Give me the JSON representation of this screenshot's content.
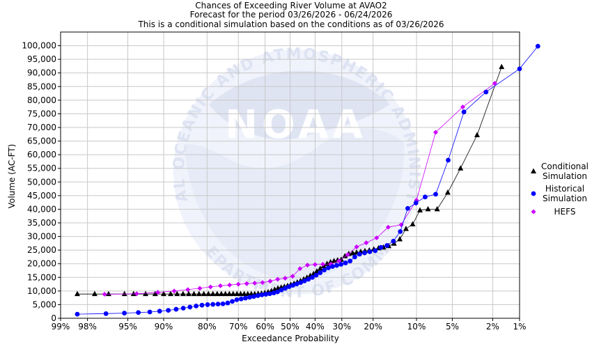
{
  "chart_data": {
    "type": "scatter",
    "title_lines": [
      "Chances of Exceeding River Volume at AVAO2",
      "Forecast for the period 03/26/2026 - 06/24/2026",
      "This is a conditional simulation based on the conditions as of 03/26/2026"
    ],
    "xlabel": "Exceedance Probability",
    "ylabel": "Volume (AC-FT)",
    "x_scale": "normal-probability",
    "x_ticks": [
      {
        "p": 0.99,
        "label": "99%"
      },
      {
        "p": 0.98,
        "label": "98%"
      },
      {
        "p": 0.95,
        "label": "95%"
      },
      {
        "p": 0.9,
        "label": "90%"
      },
      {
        "p": 0.8,
        "label": "80%"
      },
      {
        "p": 0.7,
        "label": "70%"
      },
      {
        "p": 0.6,
        "label": "60%"
      },
      {
        "p": 0.5,
        "label": "50%"
      },
      {
        "p": 0.4,
        "label": "40%"
      },
      {
        "p": 0.3,
        "label": "30%"
      },
      {
        "p": 0.2,
        "label": "20%"
      },
      {
        "p": 0.1,
        "label": "10%"
      },
      {
        "p": 0.05,
        "label": "5%"
      },
      {
        "p": 0.02,
        "label": "2%"
      },
      {
        "p": 0.01,
        "label": "1%"
      }
    ],
    "ylim": [
      0,
      105000
    ],
    "y_ticks": [
      {
        "v": 0,
        "label": "0"
      },
      {
        "v": 5000,
        "label": "5,000"
      },
      {
        "v": 10000,
        "label": "10,000"
      },
      {
        "v": 15000,
        "label": "15,000"
      },
      {
        "v": 20000,
        "label": "20,000"
      },
      {
        "v": 25000,
        "label": "25,000"
      },
      {
        "v": 30000,
        "label": "30,000"
      },
      {
        "v": 35000,
        "label": "35,000"
      },
      {
        "v": 40000,
        "label": "40,000"
      },
      {
        "v": 45000,
        "label": "45,000"
      },
      {
        "v": 50000,
        "label": "50,000"
      },
      {
        "v": 55000,
        "label": "55,000"
      },
      {
        "v": 60000,
        "label": "60,000"
      },
      {
        "v": 65000,
        "label": "65,000"
      },
      {
        "v": 70000,
        "label": "70,000"
      },
      {
        "v": 75000,
        "label": "75,000"
      },
      {
        "v": 80000,
        "label": "80,000"
      },
      {
        "v": 85000,
        "label": "85,000"
      },
      {
        "v": 90000,
        "label": "90,000"
      },
      {
        "v": 95000,
        "label": "95,000"
      },
      {
        "v": 100000,
        "label": "100,000"
      }
    ],
    "grid": true,
    "legend_position": "right",
    "watermark_text": [
      "NATIONAL OCEANIC AND ATMOSPHERIC ADMINISTRATION",
      "NOAA",
      "U.S. DEPARTMENT OF COMMERCE"
    ],
    "series": [
      {
        "name": "Conditional Simulation",
        "legend_lines": [
          "Conditional",
          "Simulation"
        ],
        "color": "#000000",
        "marker": "triangle",
        "points": [
          [
            0.9845,
            8900
          ],
          [
            0.9762,
            8900
          ],
          [
            0.9671,
            8900
          ],
          [
            0.9534,
            8900
          ],
          [
            0.9437,
            8900
          ],
          [
            0.9285,
            8900
          ],
          [
            0.9143,
            8900
          ],
          [
            0.9,
            8900
          ],
          [
            0.887,
            8900
          ],
          [
            0.874,
            8900
          ],
          [
            0.861,
            8900
          ],
          [
            0.848,
            8900
          ],
          [
            0.835,
            8900
          ],
          [
            0.822,
            8900
          ],
          [
            0.809,
            8900
          ],
          [
            0.796,
            8900
          ],
          [
            0.783,
            8900
          ],
          [
            0.77,
            8900
          ],
          [
            0.757,
            8900
          ],
          [
            0.744,
            8900
          ],
          [
            0.731,
            8900
          ],
          [
            0.718,
            8900
          ],
          [
            0.705,
            8900
          ],
          [
            0.692,
            8900
          ],
          [
            0.679,
            8900
          ],
          [
            0.666,
            8900
          ],
          [
            0.653,
            8900
          ],
          [
            0.64,
            8900
          ],
          [
            0.627,
            9000
          ],
          [
            0.614,
            9100
          ],
          [
            0.601,
            9300
          ],
          [
            0.588,
            9600
          ],
          [
            0.575,
            10000
          ],
          [
            0.562,
            10500
          ],
          [
            0.549,
            11000
          ],
          [
            0.536,
            11300
          ],
          [
            0.523,
            11600
          ],
          [
            0.51,
            11900
          ],
          [
            0.497,
            12300
          ],
          [
            0.484,
            12700
          ],
          [
            0.471,
            13200
          ],
          [
            0.458,
            13700
          ],
          [
            0.445,
            14300
          ],
          [
            0.432,
            14900
          ],
          [
            0.419,
            15600
          ],
          [
            0.406,
            16300
          ],
          [
            0.393,
            17200
          ],
          [
            0.38,
            18200
          ],
          [
            0.367,
            19200
          ],
          [
            0.354,
            20000
          ],
          [
            0.341,
            20600
          ],
          [
            0.328,
            21000
          ],
          [
            0.315,
            21300
          ],
          [
            0.302,
            21500
          ],
          [
            0.289,
            22800
          ],
          [
            0.276,
            23600
          ],
          [
            0.263,
            23900
          ],
          [
            0.25,
            24100
          ],
          [
            0.237,
            24400
          ],
          [
            0.224,
            24700
          ],
          [
            0.211,
            24900
          ],
          [
            0.198,
            25300
          ],
          [
            0.185,
            25700
          ],
          [
            0.172,
            26000
          ],
          [
            0.159,
            26500
          ],
          [
            0.146,
            27400
          ],
          [
            0.133,
            29000
          ],
          [
            0.12,
            32800
          ],
          [
            0.107,
            34500
          ],
          [
            0.094,
            39600
          ],
          [
            0.081,
            40000
          ],
          [
            0.068,
            40000
          ],
          [
            0.055,
            46100
          ],
          [
            0.042,
            55000
          ],
          [
            0.029,
            67200
          ],
          [
            0.016,
            92200
          ]
        ]
      },
      {
        "name": "Historical Simulation",
        "legend_lines": [
          "Historical",
          "Simulation"
        ],
        "color": "#0000ff",
        "marker": "circle",
        "points": [
          [
            0.9845,
            1500
          ],
          [
            0.969,
            1700
          ],
          [
            0.9535,
            1900
          ],
          [
            0.938,
            2100
          ],
          [
            0.9225,
            2300
          ],
          [
            0.907,
            2600
          ],
          [
            0.8915,
            2900
          ],
          [
            0.876,
            3300
          ],
          [
            0.8605,
            3700
          ],
          [
            0.845,
            4100
          ],
          [
            0.8295,
            4500
          ],
          [
            0.814,
            4800
          ],
          [
            0.7985,
            5000
          ],
          [
            0.783,
            5100
          ],
          [
            0.7675,
            5200
          ],
          [
            0.752,
            5300
          ],
          [
            0.7365,
            5600
          ],
          [
            0.721,
            6200
          ],
          [
            0.7055,
            6800
          ],
          [
            0.69,
            7100
          ],
          [
            0.6745,
            7400
          ],
          [
            0.659,
            7700
          ],
          [
            0.6435,
            8000
          ],
          [
            0.628,
            8300
          ],
          [
            0.6125,
            8600
          ],
          [
            0.597,
            8800
          ],
          [
            0.5815,
            9000
          ],
          [
            0.566,
            9300
          ],
          [
            0.5505,
            9700
          ],
          [
            0.535,
            10400
          ],
          [
            0.5195,
            11000
          ],
          [
            0.504,
            11600
          ],
          [
            0.4885,
            12100
          ],
          [
            0.473,
            12600
          ],
          [
            0.4575,
            13100
          ],
          [
            0.442,
            13700
          ],
          [
            0.4265,
            14300
          ],
          [
            0.411,
            15000
          ],
          [
            0.3955,
            15800
          ],
          [
            0.38,
            16700
          ],
          [
            0.3645,
            17700
          ],
          [
            0.349,
            18500
          ],
          [
            0.3335,
            19000
          ],
          [
            0.318,
            19400
          ],
          [
            0.3025,
            19800
          ],
          [
            0.287,
            20300
          ],
          [
            0.2715,
            21000
          ],
          [
            0.256,
            22500
          ],
          [
            0.2405,
            23500
          ],
          [
            0.225,
            24000
          ],
          [
            0.2095,
            24400
          ],
          [
            0.194,
            24800
          ],
          [
            0.1785,
            26000
          ],
          [
            0.163,
            26700
          ],
          [
            0.1475,
            28300
          ],
          [
            0.132,
            31800
          ],
          [
            0.1165,
            40300
          ],
          [
            0.101,
            42300
          ],
          [
            0.0855,
            44500
          ],
          [
            0.07,
            45500
          ],
          [
            0.0545,
            58000
          ],
          [
            0.039,
            75700
          ],
          [
            0.0235,
            83000
          ],
          [
            0.01,
            91500
          ],
          [
            0.006,
            99800
          ]
        ]
      },
      {
        "name": "HEFS",
        "legend_lines": [
          "HEFS"
        ],
        "color": "#cc00ff",
        "marker": "diamond",
        "points": [
          [
            0.97,
            8800
          ],
          [
            0.94,
            9000
          ],
          [
            0.91,
            9500
          ],
          [
            0.88,
            10000
          ],
          [
            0.85,
            10500
          ],
          [
            0.82,
            11000
          ],
          [
            0.79,
            11500
          ],
          [
            0.76,
            11900
          ],
          [
            0.73,
            12200
          ],
          [
            0.7,
            12500
          ],
          [
            0.67,
            12700
          ],
          [
            0.64,
            12900
          ],
          [
            0.61,
            13100
          ],
          [
            0.58,
            13600
          ],
          [
            0.55,
            14300
          ],
          [
            0.52,
            14700
          ],
          [
            0.49,
            15400
          ],
          [
            0.46,
            18200
          ],
          [
            0.43,
            19500
          ],
          [
            0.4,
            19700
          ],
          [
            0.37,
            19800
          ],
          [
            0.34,
            19900
          ],
          [
            0.31,
            21000
          ],
          [
            0.28,
            23300
          ],
          [
            0.25,
            26200
          ],
          [
            0.22,
            27700
          ],
          [
            0.19,
            29500
          ],
          [
            0.16,
            33400
          ],
          [
            0.13,
            34300
          ],
          [
            0.1,
            43300
          ],
          [
            0.07,
            68200
          ],
          [
            0.04,
            77500
          ],
          [
            0.019,
            86200
          ]
        ]
      }
    ]
  }
}
